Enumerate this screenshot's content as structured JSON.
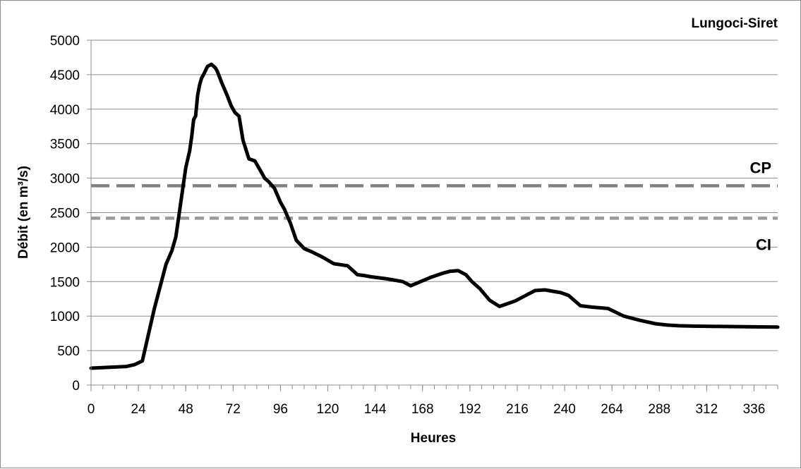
{
  "chart_data": {
    "type": "line",
    "title": "Lungoci-Siret",
    "xlabel": "Heures",
    "ylabel": "Débit (en m³/s)",
    "xlim": [
      0,
      348
    ],
    "ylim": [
      0,
      5000
    ],
    "x_ticks": [
      0,
      24,
      48,
      72,
      96,
      120,
      144,
      168,
      192,
      216,
      240,
      264,
      288,
      312,
      336
    ],
    "y_ticks": [
      0,
      500,
      1000,
      1500,
      2000,
      2500,
      3000,
      3500,
      4000,
      4500,
      5000
    ],
    "grid": "horizontal",
    "series": [
      {
        "color": "#000000",
        "x": [
          0,
          18,
          22,
          26,
          32,
          38,
          41,
          43,
          46,
          48,
          50,
          51,
          52,
          53,
          54,
          55,
          56,
          57,
          59,
          61,
          63,
          64,
          66,
          69,
          71,
          73,
          75,
          77,
          80,
          83,
          86,
          88,
          90,
          93,
          96,
          98,
          101,
          104,
          108,
          112,
          117,
          123,
          130,
          135,
          138,
          142,
          150,
          158,
          162,
          167,
          172,
          178,
          182,
          186,
          190,
          193,
          197,
          202,
          207,
          211,
          215,
          219,
          225,
          230,
          234,
          238,
          242,
          248,
          254,
          262,
          270,
          278,
          286,
          292,
          298,
          305,
          320,
          335,
          348
        ],
        "y": [
          245,
          270,
          295,
          350,
          1100,
          1750,
          1950,
          2150,
          2750,
          3150,
          3400,
          3600,
          3850,
          3900,
          4200,
          4350,
          4450,
          4500,
          4620,
          4650,
          4600,
          4550,
          4400,
          4200,
          4050,
          3950,
          3900,
          3550,
          3280,
          3250,
          3100,
          3000,
          2950,
          2850,
          2650,
          2550,
          2350,
          2100,
          1980,
          1930,
          1860,
          1760,
          1730,
          1600,
          1590,
          1570,
          1540,
          1500,
          1440,
          1500,
          1560,
          1620,
          1650,
          1660,
          1600,
          1500,
          1400,
          1230,
          1140,
          1180,
          1220,
          1280,
          1370,
          1380,
          1360,
          1340,
          1300,
          1150,
          1130,
          1110,
          1000,
          940,
          890,
          870,
          860,
          855,
          850,
          845,
          840
        ]
      }
    ],
    "reference_lines": [
      {
        "label": "CP",
        "value": 2890,
        "style": "long-dash",
        "color": "#808080"
      },
      {
        "label": "CI",
        "value": 2420,
        "style": "short-dash",
        "color": "#9a9a9a"
      }
    ]
  }
}
